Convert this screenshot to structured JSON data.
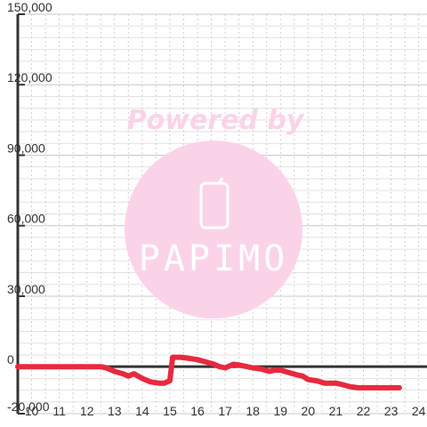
{
  "watermark": {
    "text": "Powered by",
    "brand": "PAPIMO",
    "color": "#fbd3e9"
  },
  "chart_data": {
    "type": "line",
    "title": "",
    "xlabel": "",
    "ylabel": "",
    "xlim": [
      9.5,
      24.3
    ],
    "ylim": [
      -20000,
      150000
    ],
    "x_ticks": [
      10,
      11,
      12,
      13,
      14,
      15,
      16,
      17,
      18,
      19,
      20,
      21,
      22,
      23,
      24
    ],
    "y_ticks": [
      -20000,
      0,
      30000,
      60000,
      90000,
      120000,
      150000
    ],
    "x_tick_labels": [
      "10",
      "11",
      "12",
      "13",
      "14",
      "15",
      "16",
      "17",
      "18",
      "19",
      "20",
      "21",
      "22",
      "23",
      "24"
    ],
    "y_tick_labels": [
      "-20,000",
      "0",
      "30,000",
      "60,000",
      "90,000",
      "120,000",
      "150,000"
    ],
    "grid": true,
    "series": [
      {
        "color": "#e8293f",
        "x": [
          9.5,
          10.0,
          11.0,
          12.0,
          12.5,
          12.7,
          13.0,
          13.3,
          13.5,
          13.7,
          14.0,
          14.3,
          14.6,
          14.8,
          15.0,
          15.1,
          15.4,
          15.7,
          16.0,
          16.3,
          16.6,
          16.8,
          17.0,
          17.3,
          17.6,
          18.0,
          18.3,
          18.6,
          18.8,
          19.0,
          19.3,
          19.6,
          19.8,
          20.0,
          20.3,
          20.6,
          21.0,
          21.2,
          21.5,
          21.8,
          22.0,
          22.5,
          23.0,
          23.3
        ],
        "values": [
          0,
          0,
          0,
          0,
          0,
          -500,
          -2000,
          -3000,
          -4000,
          -3000,
          -5000,
          -6500,
          -7000,
          -7000,
          -6000,
          4000,
          4000,
          3500,
          3000,
          2000,
          1000,
          0,
          -500,
          1000,
          500,
          -500,
          -1000,
          -2000,
          -1500,
          -1500,
          -2500,
          -3500,
          -4000,
          -5500,
          -6000,
          -7000,
          -7000,
          -7500,
          -8500,
          -9000,
          -9000,
          -9000,
          -9000,
          -9000
        ]
      }
    ]
  }
}
